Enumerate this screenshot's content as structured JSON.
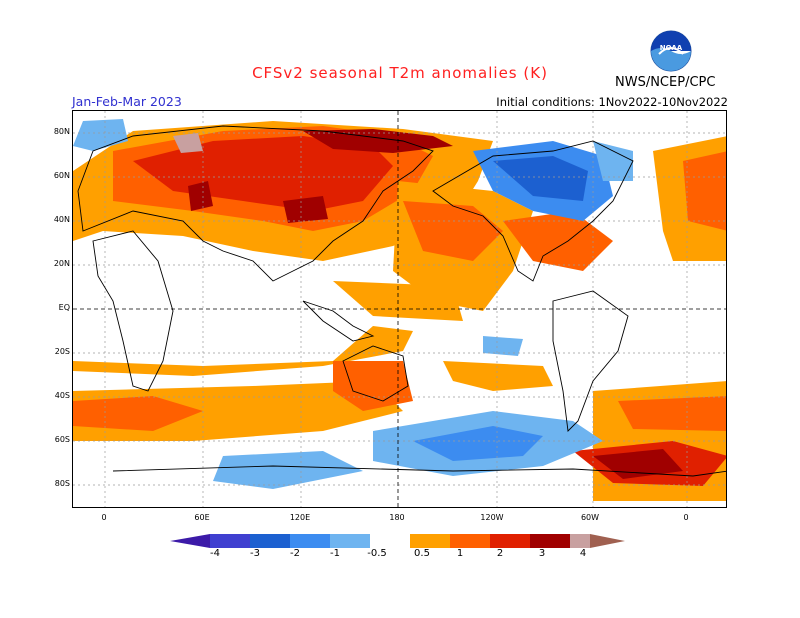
{
  "header": {
    "title": "CFSv2 seasonal T2m anomalies (K)",
    "period": "Jan-Feb-Mar 2023",
    "initial_conditions": "Initial conditions: 1Nov2022-10Nov2022",
    "agency": "NWS/NCEP/CPC",
    "logo_text": "NOAA"
  },
  "map": {
    "projection": "cylindrical",
    "lat_labels": [
      "80N",
      "60N",
      "40N",
      "20N",
      "EQ",
      "20S",
      "40S",
      "60S",
      "80S"
    ],
    "lon_labels": [
      "0",
      "60E",
      "120E",
      "180",
      "120W",
      "60W",
      "0"
    ]
  },
  "colorbar": {
    "labels": [
      "-4",
      "-3",
      "-2",
      "-1",
      "-0.5",
      "0.5",
      "1",
      "2",
      "3",
      "4"
    ],
    "colors": [
      "#3c1aa8",
      "#4040d0",
      "#1c60d0",
      "#3c8cf0",
      "#6eb4f0",
      "#ffffff",
      "#ffa000",
      "#ff6000",
      "#e02000",
      "#a00000",
      "#c8a0a0",
      "#a06050"
    ]
  }
}
